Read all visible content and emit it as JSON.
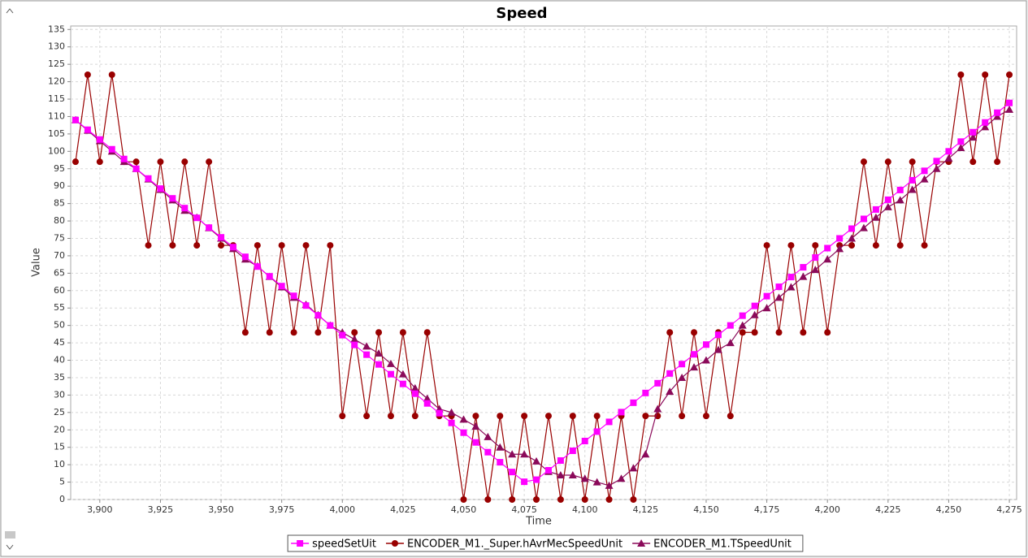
{
  "chart_data": {
    "type": "line",
    "title": "Speed",
    "x_label": "Time",
    "y_label": "Value",
    "x": [
      3890,
      3895,
      3900,
      3905,
      3910,
      3915,
      3920,
      3925,
      3930,
      3935,
      3940,
      3945,
      3950,
      3955,
      3960,
      3965,
      3970,
      3975,
      3980,
      3985,
      3990,
      3995,
      4000,
      4005,
      4010,
      4015,
      4020,
      4025,
      4030,
      4035,
      4040,
      4045,
      4050,
      4055,
      4060,
      4065,
      4070,
      4075,
      4080,
      4085,
      4090,
      4095,
      4100,
      4105,
      4110,
      4115,
      4120,
      4125,
      4130,
      4135,
      4140,
      4145,
      4150,
      4155,
      4160,
      4165,
      4170,
      4175,
      4180,
      4185,
      4190,
      4195,
      4200,
      4205,
      4210,
      4215,
      4220,
      4225,
      4230,
      4235,
      4240,
      4245,
      4250,
      4255,
      4260,
      4265,
      4270,
      4275
    ],
    "series": [
      {
        "name": "speedSetUit",
        "color": "#ff00ff",
        "marker": "square",
        "values": [
          109,
          106.2,
          103.4,
          100.6,
          97.8,
          95.0,
          92.2,
          89.3,
          86.5,
          83.7,
          80.9,
          78.1,
          75.3,
          72.5,
          69.7,
          66.9,
          64.1,
          61.3,
          58.5,
          55.7,
          52.9,
          50.0,
          47.2,
          44.4,
          41.6,
          38.8,
          36.0,
          33.2,
          30.4,
          27.6,
          24.8,
          22.0,
          19.2,
          16.4,
          13.6,
          10.7,
          7.9,
          5.1,
          5.7,
          8.4,
          11.2,
          14.0,
          16.8,
          19.5,
          22.3,
          25.1,
          27.8,
          30.6,
          33.4,
          36.2,
          38.9,
          41.7,
          44.5,
          47.3,
          50.0,
          52.8,
          55.6,
          58.4,
          61.1,
          63.9,
          66.7,
          69.5,
          72.2,
          75.0,
          77.8,
          80.6,
          83.3,
          86.1,
          88.9,
          91.7,
          94.4,
          97.2,
          100.0,
          102.8,
          105.5,
          108.3,
          111.1,
          113.9
        ]
      },
      {
        "name": "ENCODER_M1._Super.hAvrMecSpeedUnit",
        "color": "#990000",
        "marker": "circle",
        "values": [
          97,
          122,
          97,
          122,
          97,
          97,
          73,
          97,
          73,
          97,
          73,
          97,
          73,
          73,
          48,
          73,
          48,
          73,
          48,
          73,
          48,
          73,
          24,
          48,
          24,
          48,
          24,
          48,
          24,
          48,
          24,
          24,
          0,
          24,
          0,
          24,
          0,
          24,
          0,
          24,
          0,
          24,
          0,
          24,
          0,
          24,
          0,
          24,
          24,
          48,
          24,
          48,
          24,
          48,
          24,
          48,
          48,
          73,
          48,
          73,
          48,
          73,
          48,
          73,
          73,
          97,
          73,
          97,
          73,
          97,
          73,
          97,
          97,
          122,
          97,
          122,
          97,
          122
        ]
      },
      {
        "name": "ENCODER_M1.TSpeedUnit",
        "color": "#8b0a5a",
        "marker": "triangle",
        "values": [
          109,
          106,
          103,
          100,
          97,
          95,
          92,
          89,
          86,
          83,
          81,
          78,
          75,
          72,
          69,
          67,
          64,
          61,
          58,
          56,
          53,
          50,
          48,
          46,
          44,
          42,
          39,
          36,
          32,
          29,
          26,
          25,
          23,
          21,
          18,
          15,
          13,
          13,
          11,
          8,
          7,
          7,
          6,
          5,
          4,
          6,
          9,
          13,
          26,
          31,
          35,
          38,
          40,
          43,
          45,
          50,
          53,
          55,
          58,
          61,
          64,
          66,
          69,
          72,
          75,
          78,
          81,
          84,
          86,
          89,
          92,
          95,
          98,
          101,
          104,
          107,
          110,
          112
        ]
      }
    ],
    "xlim": [
      3888,
      4278
    ],
    "ylim": [
      0,
      136
    ],
    "xticks": [
      {
        "value": 3900,
        "label": "3,900"
      },
      {
        "value": 3925,
        "label": "3,925"
      },
      {
        "value": 3950,
        "label": "3,950"
      },
      {
        "value": 3975,
        "label": "3,975"
      },
      {
        "value": 4000,
        "label": "4,000"
      },
      {
        "value": 4025,
        "label": "4,025"
      },
      {
        "value": 4050,
        "label": "4,050"
      },
      {
        "value": 4075,
        "label": "4,075"
      },
      {
        "value": 4100,
        "label": "4,100"
      },
      {
        "value": 4125,
        "label": "4,125"
      },
      {
        "value": 4150,
        "label": "4,150"
      },
      {
        "value": 4175,
        "label": "4,175"
      },
      {
        "value": 4200,
        "label": "4,200"
      },
      {
        "value": 4225,
        "label": "4,225"
      },
      {
        "value": 4250,
        "label": "4,250"
      },
      {
        "value": 4275,
        "label": "4,275"
      }
    ],
    "yticks": [
      0,
      5,
      10,
      15,
      20,
      25,
      30,
      35,
      40,
      45,
      50,
      55,
      60,
      65,
      70,
      75,
      80,
      85,
      90,
      95,
      100,
      105,
      110,
      115,
      120,
      125,
      130,
      135
    ],
    "grid": true,
    "legend": "bottom"
  }
}
